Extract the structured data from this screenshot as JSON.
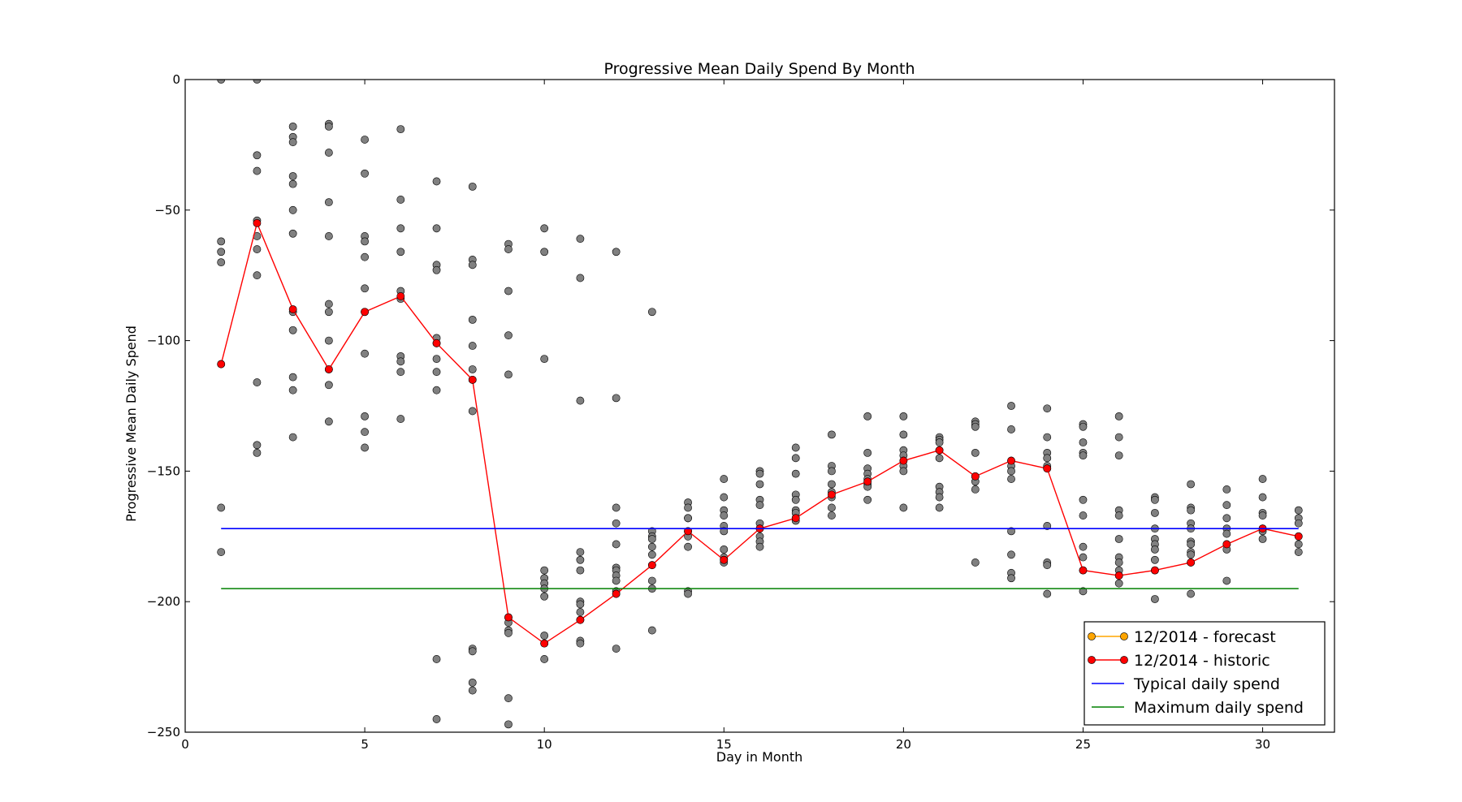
{
  "chart_data": {
    "type": "scatter",
    "title": "Progressive Mean Daily Spend By Month",
    "xlabel": "Day in Month",
    "ylabel": "Progressive Mean Daily Spend",
    "xlim": [
      0,
      32
    ],
    "ylim": [
      -250,
      0
    ],
    "xticks": [
      0,
      5,
      10,
      15,
      20,
      25,
      30
    ],
    "yticks": [
      0,
      -50,
      -100,
      -150,
      -200,
      -250
    ],
    "grid": false,
    "legend_position": "lower-right",
    "colors": {
      "points": "#808080",
      "historic": "#ff0000",
      "forecast": "#ffa500",
      "typical": "#0000ff",
      "maximum": "#008000"
    },
    "legend": [
      {
        "label": "12/2014 - forecast",
        "kind": "line-marker",
        "color": "#ffa500"
      },
      {
        "label": "12/2014 - historic",
        "kind": "line-marker",
        "color": "#ff0000"
      },
      {
        "label": "Typical daily spend",
        "kind": "line",
        "color": "#0000ff"
      },
      {
        "label": "Maximum daily spend",
        "kind": "line",
        "color": "#008000"
      }
    ],
    "scatter_points": [
      [
        1,
        0
      ],
      [
        1,
        -62
      ],
      [
        1,
        -66
      ],
      [
        1,
        -70
      ],
      [
        1,
        -109
      ],
      [
        1,
        -164
      ],
      [
        1,
        -181
      ],
      [
        2,
        0
      ],
      [
        2,
        -29
      ],
      [
        2,
        -35
      ],
      [
        2,
        -54
      ],
      [
        2,
        -60
      ],
      [
        2,
        -65
      ],
      [
        2,
        -75
      ],
      [
        2,
        -116
      ],
      [
        2,
        -140
      ],
      [
        2,
        -143
      ],
      [
        3,
        -18
      ],
      [
        3,
        -22
      ],
      [
        3,
        -24
      ],
      [
        3,
        -37
      ],
      [
        3,
        -40
      ],
      [
        3,
        -50
      ],
      [
        3,
        -59
      ],
      [
        3,
        -89
      ],
      [
        3,
        -96
      ],
      [
        3,
        -114
      ],
      [
        3,
        -119
      ],
      [
        3,
        -137
      ],
      [
        4,
        -17
      ],
      [
        4,
        -18
      ],
      [
        4,
        -28
      ],
      [
        4,
        -47
      ],
      [
        4,
        -60
      ],
      [
        4,
        -86
      ],
      [
        4,
        -89
      ],
      [
        4,
        -100
      ],
      [
        4,
        -111
      ],
      [
        4,
        -117
      ],
      [
        4,
        -131
      ],
      [
        5,
        -23
      ],
      [
        5,
        -36
      ],
      [
        5,
        -60
      ],
      [
        5,
        -62
      ],
      [
        5,
        -68
      ],
      [
        5,
        -80
      ],
      [
        5,
        -89
      ],
      [
        5,
        -105
      ],
      [
        5,
        -129
      ],
      [
        5,
        -135
      ],
      [
        5,
        -141
      ],
      [
        6,
        -19
      ],
      [
        6,
        -46
      ],
      [
        6,
        -57
      ],
      [
        6,
        -66
      ],
      [
        6,
        -81
      ],
      [
        6,
        -84
      ],
      [
        6,
        -106
      ],
      [
        6,
        -108
      ],
      [
        6,
        -112
      ],
      [
        6,
        -130
      ],
      [
        7,
        -39
      ],
      [
        7,
        -57
      ],
      [
        7,
        -71
      ],
      [
        7,
        -73
      ],
      [
        7,
        -99
      ],
      [
        7,
        -101
      ],
      [
        7,
        -107
      ],
      [
        7,
        -112
      ],
      [
        7,
        -119
      ],
      [
        7,
        -222
      ],
      [
        7,
        -245
      ],
      [
        8,
        -41
      ],
      [
        8,
        -69
      ],
      [
        8,
        -71
      ],
      [
        8,
        -92
      ],
      [
        8,
        -102
      ],
      [
        8,
        -111
      ],
      [
        8,
        -115
      ],
      [
        8,
        -127
      ],
      [
        8,
        -218
      ],
      [
        8,
        -219
      ],
      [
        8,
        -231
      ],
      [
        8,
        -234
      ],
      [
        9,
        -63
      ],
      [
        9,
        -65
      ],
      [
        9,
        -81
      ],
      [
        9,
        -98
      ],
      [
        9,
        -113
      ],
      [
        9,
        -206
      ],
      [
        9,
        -208
      ],
      [
        9,
        -211
      ],
      [
        9,
        -212
      ],
      [
        9,
        -237
      ],
      [
        9,
        -247
      ],
      [
        10,
        -57
      ],
      [
        10,
        -66
      ],
      [
        10,
        -107
      ],
      [
        10,
        -188
      ],
      [
        10,
        -191
      ],
      [
        10,
        -193
      ],
      [
        10,
        -195
      ],
      [
        10,
        -198
      ],
      [
        10,
        -213
      ],
      [
        10,
        -216
      ],
      [
        10,
        -222
      ],
      [
        11,
        -61
      ],
      [
        11,
        -76
      ],
      [
        11,
        -123
      ],
      [
        11,
        -181
      ],
      [
        11,
        -184
      ],
      [
        11,
        -188
      ],
      [
        11,
        -200
      ],
      [
        11,
        -201
      ],
      [
        11,
        -204
      ],
      [
        11,
        -207
      ],
      [
        11,
        -215
      ],
      [
        11,
        -216
      ],
      [
        12,
        -66
      ],
      [
        12,
        -122
      ],
      [
        12,
        -164
      ],
      [
        12,
        -170
      ],
      [
        12,
        -178
      ],
      [
        12,
        -187
      ],
      [
        12,
        -188
      ],
      [
        12,
        -190
      ],
      [
        12,
        -192
      ],
      [
        12,
        -196
      ],
      [
        12,
        -197
      ],
      [
        12,
        -218
      ],
      [
        13,
        -89
      ],
      [
        13,
        -173
      ],
      [
        13,
        -175
      ],
      [
        13,
        -176
      ],
      [
        13,
        -179
      ],
      [
        13,
        -182
      ],
      [
        13,
        -186
      ],
      [
        13,
        -192
      ],
      [
        13,
        -195
      ],
      [
        13,
        -211
      ],
      [
        14,
        -162
      ],
      [
        14,
        -164
      ],
      [
        14,
        -168
      ],
      [
        14,
        -168
      ],
      [
        14,
        -173
      ],
      [
        14,
        -175
      ],
      [
        14,
        -179
      ],
      [
        14,
        -196
      ],
      [
        14,
        -197
      ],
      [
        15,
        -153
      ],
      [
        15,
        -160
      ],
      [
        15,
        -165
      ],
      [
        15,
        -167
      ],
      [
        15,
        -171
      ],
      [
        15,
        -173
      ],
      [
        15,
        -180
      ],
      [
        15,
        -183
      ],
      [
        15,
        -184
      ],
      [
        15,
        -185
      ],
      [
        16,
        -150
      ],
      [
        16,
        -151
      ],
      [
        16,
        -155
      ],
      [
        16,
        -161
      ],
      [
        16,
        -163
      ],
      [
        16,
        -170
      ],
      [
        16,
        -172
      ],
      [
        16,
        -175
      ],
      [
        16,
        -177
      ],
      [
        16,
        -179
      ],
      [
        17,
        -141
      ],
      [
        17,
        -145
      ],
      [
        17,
        -151
      ],
      [
        17,
        -159
      ],
      [
        17,
        -161
      ],
      [
        17,
        -165
      ],
      [
        17,
        -166
      ],
      [
        17,
        -168
      ],
      [
        17,
        -169
      ],
      [
        18,
        -136
      ],
      [
        18,
        -148
      ],
      [
        18,
        -150
      ],
      [
        18,
        -155
      ],
      [
        18,
        -158
      ],
      [
        18,
        -160
      ],
      [
        18,
        -164
      ],
      [
        18,
        -167
      ],
      [
        19,
        -129
      ],
      [
        19,
        -143
      ],
      [
        19,
        -149
      ],
      [
        19,
        -151
      ],
      [
        19,
        -153
      ],
      [
        19,
        -155
      ],
      [
        19,
        -156
      ],
      [
        19,
        -161
      ],
      [
        20,
        -129
      ],
      [
        20,
        -136
      ],
      [
        20,
        -142
      ],
      [
        20,
        -144
      ],
      [
        20,
        -146
      ],
      [
        20,
        -148
      ],
      [
        20,
        -150
      ],
      [
        20,
        -164
      ],
      [
        21,
        -137
      ],
      [
        21,
        -138
      ],
      [
        21,
        -139
      ],
      [
        21,
        -142
      ],
      [
        21,
        -145
      ],
      [
        21,
        -156
      ],
      [
        21,
        -158
      ],
      [
        21,
        -160
      ],
      [
        21,
        -164
      ],
      [
        22,
        -131
      ],
      [
        22,
        -132
      ],
      [
        22,
        -133
      ],
      [
        22,
        -143
      ],
      [
        22,
        -152
      ],
      [
        22,
        -154
      ],
      [
        22,
        -157
      ],
      [
        22,
        -185
      ],
      [
        23,
        -125
      ],
      [
        23,
        -134
      ],
      [
        23,
        -146
      ],
      [
        23,
        -148
      ],
      [
        23,
        -150
      ],
      [
        23,
        -153
      ],
      [
        23,
        -173
      ],
      [
        23,
        -182
      ],
      [
        23,
        -189
      ],
      [
        23,
        -191
      ],
      [
        24,
        -126
      ],
      [
        24,
        -137
      ],
      [
        24,
        -143
      ],
      [
        24,
        -145
      ],
      [
        24,
        -148
      ],
      [
        24,
        -149
      ],
      [
        24,
        -171
      ],
      [
        24,
        -185
      ],
      [
        24,
        -186
      ],
      [
        24,
        -197
      ],
      [
        25,
        -132
      ],
      [
        25,
        -133
      ],
      [
        25,
        -139
      ],
      [
        25,
        -143
      ],
      [
        25,
        -144
      ],
      [
        25,
        -161
      ],
      [
        25,
        -167
      ],
      [
        25,
        -179
      ],
      [
        25,
        -183
      ],
      [
        25,
        -188
      ],
      [
        25,
        -196
      ],
      [
        26,
        -129
      ],
      [
        26,
        -137
      ],
      [
        26,
        -144
      ],
      [
        26,
        -165
      ],
      [
        26,
        -167
      ],
      [
        26,
        -176
      ],
      [
        26,
        -183
      ],
      [
        26,
        -185
      ],
      [
        26,
        -188
      ],
      [
        26,
        -190
      ],
      [
        26,
        -193
      ],
      [
        27,
        -160
      ],
      [
        27,
        -161
      ],
      [
        27,
        -166
      ],
      [
        27,
        -172
      ],
      [
        27,
        -176
      ],
      [
        27,
        -178
      ],
      [
        27,
        -180
      ],
      [
        27,
        -184
      ],
      [
        27,
        -188
      ],
      [
        27,
        -199
      ],
      [
        28,
        -155
      ],
      [
        28,
        -164
      ],
      [
        28,
        -165
      ],
      [
        28,
        -170
      ],
      [
        28,
        -172
      ],
      [
        28,
        -177
      ],
      [
        28,
        -178
      ],
      [
        28,
        -181
      ],
      [
        28,
        -182
      ],
      [
        28,
        -185
      ],
      [
        28,
        -197
      ],
      [
        29,
        -157
      ],
      [
        29,
        -163
      ],
      [
        29,
        -168
      ],
      [
        29,
        -172
      ],
      [
        29,
        -174
      ],
      [
        29,
        -178
      ],
      [
        29,
        -180
      ],
      [
        29,
        -192
      ],
      [
        30,
        -153
      ],
      [
        30,
        -160
      ],
      [
        30,
        -166
      ],
      [
        30,
        -167
      ],
      [
        30,
        -172
      ],
      [
        30,
        -173
      ],
      [
        30,
        -176
      ],
      [
        31,
        -165
      ],
      [
        31,
        -168
      ],
      [
        31,
        -170
      ],
      [
        31,
        -175
      ],
      [
        31,
        -178
      ],
      [
        31,
        -181
      ]
    ],
    "series": [
      {
        "name": "12/2014 - historic",
        "color": "#ff0000",
        "x": [
          1,
          2,
          3,
          4,
          5,
          6,
          7,
          8,
          9,
          10,
          11,
          12,
          13,
          14,
          15,
          16,
          17,
          18,
          19,
          20,
          21,
          22,
          23,
          24,
          25,
          26,
          27,
          28,
          29,
          30,
          31
        ],
        "y": [
          -109,
          -55,
          -88,
          -111,
          -89,
          -83,
          -101,
          -115,
          -206,
          -216,
          -207,
          -197,
          -186,
          -173,
          -184,
          -172,
          -168,
          -159,
          -154,
          -146,
          -142,
          -152,
          -146,
          -149,
          -188,
          -190,
          -188,
          -185,
          -178,
          -172,
          -175
        ]
      },
      {
        "name": "Typical daily spend",
        "color": "#0000ff",
        "x": [
          1,
          31
        ],
        "y": [
          -172,
          -172
        ]
      },
      {
        "name": "Maximum daily spend",
        "color": "#008000",
        "x": [
          1,
          31
        ],
        "y": [
          -195,
          -195
        ]
      }
    ]
  }
}
